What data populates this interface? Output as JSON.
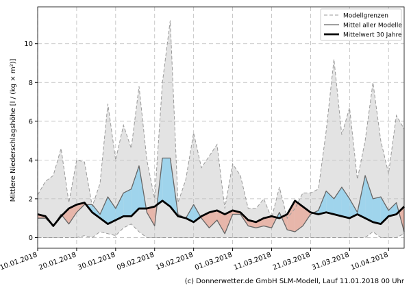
{
  "chart_data": {
    "type": "line",
    "ylabel": "Mittlere Niederschlagshöhe [l / (kg × m²)]",
    "footer": "(c) Donnerwetter.de GmbH SLM-Modell, Lauf 11.01.2018 00 Uhr",
    "x": [
      "2018-01-10",
      "2018-01-12",
      "2018-01-14",
      "2018-01-16",
      "2018-01-18",
      "2018-01-20",
      "2018-01-22",
      "2018-01-24",
      "2018-01-26",
      "2018-01-28",
      "2018-01-30",
      "2018-02-01",
      "2018-02-03",
      "2018-02-05",
      "2018-02-07",
      "2018-02-09",
      "2018-02-11",
      "2018-02-13",
      "2018-02-15",
      "2018-02-17",
      "2018-02-19",
      "2018-02-21",
      "2018-02-23",
      "2018-02-25",
      "2018-02-27",
      "2018-03-01",
      "2018-03-03",
      "2018-03-05",
      "2018-03-07",
      "2018-03-09",
      "2018-03-11",
      "2018-03-13",
      "2018-03-15",
      "2018-03-17",
      "2018-03-19",
      "2018-03-21",
      "2018-03-23",
      "2018-03-25",
      "2018-03-27",
      "2018-03-29",
      "2018-03-31",
      "2018-04-02",
      "2018-04-04",
      "2018-04-06",
      "2018-04-08",
      "2018-04-10",
      "2018-04-12",
      "2018-04-14"
    ],
    "band": {
      "name": "Modellgrenzen",
      "color": "#999999",
      "fill": "#e3e3e3",
      "upper": [
        2.2,
        2.9,
        3.2,
        4.6,
        1.8,
        4.0,
        3.9,
        1.6,
        2.8,
        6.9,
        4.0,
        5.8,
        4.6,
        7.8,
        4.0,
        2.0,
        8.0,
        11.2,
        1.8,
        3.0,
        5.4,
        3.6,
        4.2,
        4.8,
        1.5,
        3.8,
        3.2,
        1.5,
        1.5,
        2.0,
        1.0,
        2.6,
        1.0,
        1.5,
        2.3,
        2.3,
        2.5,
        5.5,
        9.2,
        5.3,
        6.7,
        3.0,
        5.0,
        8.0,
        5.0,
        3.3,
        6.3,
        5.6
      ],
      "lower": [
        0,
        0,
        0,
        0,
        0,
        0,
        0.1,
        0,
        0.3,
        0.2,
        0.1,
        0.5,
        0.7,
        0.3,
        0,
        0,
        0,
        0,
        0,
        0,
        0,
        0,
        0,
        0,
        0,
        0,
        0,
        0,
        0,
        0,
        0,
        0,
        0,
        0,
        0,
        0,
        0,
        0,
        0,
        0,
        0,
        0,
        0,
        0.3,
        0,
        0,
        0,
        0.2
      ]
    },
    "series": [
      {
        "name": "Mittel aller Modelle",
        "color": "#666666",
        "values": [
          1.0,
          1.0,
          0.6,
          1.2,
          0.7,
          1.3,
          1.7,
          1.7,
          1.2,
          2.1,
          1.5,
          2.3,
          2.5,
          3.7,
          1.3,
          0.6,
          4.1,
          4.1,
          1.2,
          1.0,
          1.7,
          1.0,
          0.5,
          0.9,
          0.2,
          1.2,
          1.2,
          0.6,
          0.5,
          0.6,
          0.5,
          1.3,
          0.4,
          0.3,
          0.6,
          1.2,
          1.4,
          2.4,
          2.0,
          2.6,
          2.0,
          1.3,
          3.2,
          2.0,
          2.1,
          1.4,
          1.8,
          0.3
        ]
      },
      {
        "name": "Mittelwert 30 Jahre",
        "color": "#000000",
        "values": [
          1.2,
          1.1,
          0.6,
          1.1,
          1.5,
          1.7,
          1.8,
          1.3,
          1.0,
          0.7,
          0.9,
          1.1,
          1.1,
          1.5,
          1.5,
          1.6,
          1.9,
          1.6,
          1.1,
          1.0,
          0.8,
          1.1,
          1.3,
          1.4,
          1.2,
          1.4,
          1.3,
          0.9,
          0.8,
          1.0,
          1.1,
          1.0,
          1.2,
          1.9,
          1.6,
          1.3,
          1.2,
          1.3,
          1.2,
          1.1,
          1.0,
          1.2,
          1.0,
          0.8,
          0.7,
          1.1,
          1.2,
          1.6
        ]
      }
    ],
    "above_color": "#9fd4ec",
    "below_color": "#e7b6aa",
    "xlim": [
      "2018-01-10",
      "2018-04-14"
    ],
    "xticks": [
      {
        "value": "2018-01-10",
        "label": "10.01.2018"
      },
      {
        "value": "2018-01-20",
        "label": "20.01.2018"
      },
      {
        "value": "2018-01-30",
        "label": "30.01.2018"
      },
      {
        "value": "2018-02-09",
        "label": "09.02.2018"
      },
      {
        "value": "2018-02-19",
        "label": "19.02.2018"
      },
      {
        "value": "2018-03-01",
        "label": "01.03.2018"
      },
      {
        "value": "2018-03-11",
        "label": "11.03.2018"
      },
      {
        "value": "2018-03-21",
        "label": "21.03.2018"
      },
      {
        "value": "2018-03-31",
        "label": "31.03.2018"
      },
      {
        "value": "2018-04-10",
        "label": "10.04.2018"
      }
    ],
    "ylim": [
      -0.55,
      11.9
    ],
    "yticks": [
      0,
      2,
      4,
      6,
      8,
      10
    ],
    "grid": true,
    "legend": "upper right"
  }
}
